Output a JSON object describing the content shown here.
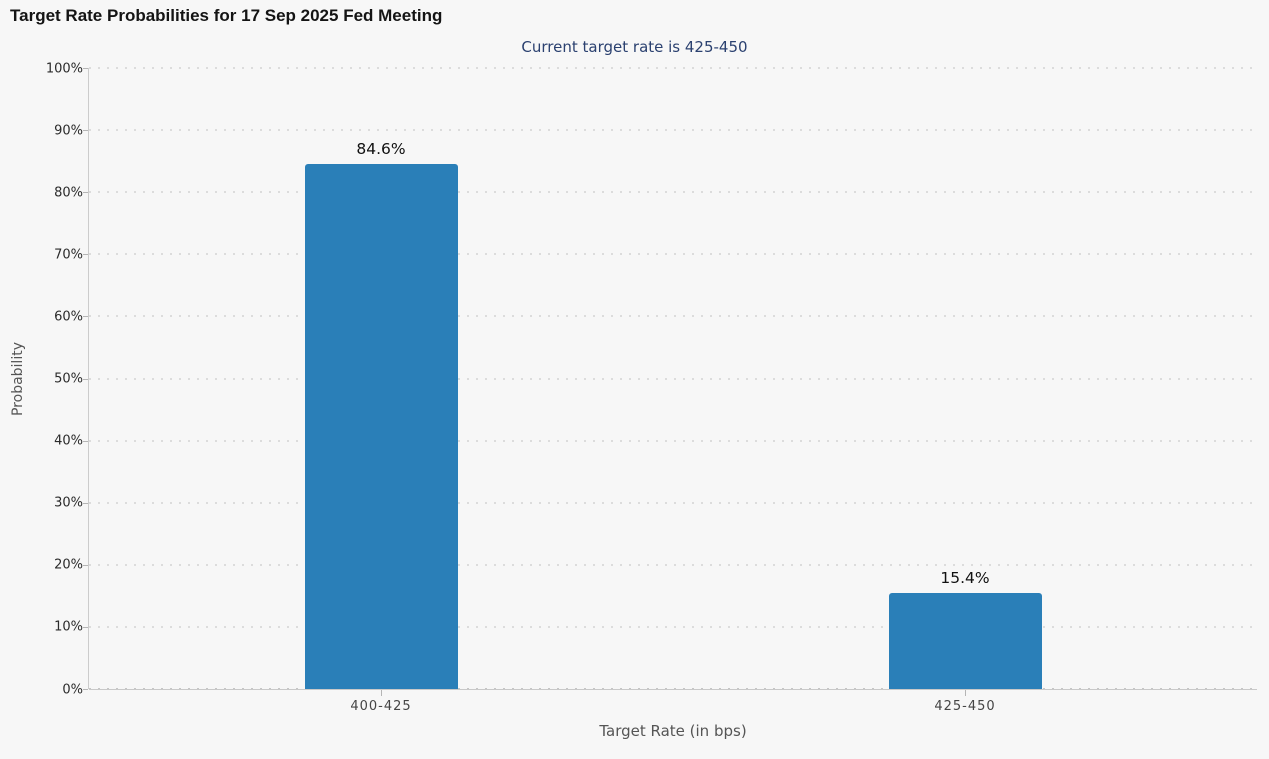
{
  "page": {
    "title": "Target Rate Probabilities for 17 Sep 2025 Fed Meeting",
    "subtitle": "Current target rate is 425-450"
  },
  "chart_data": {
    "type": "bar",
    "title": "Target Rate Probabilities for 17 Sep 2025 Fed Meeting",
    "subtitle": "Current target rate is 425-450",
    "categories": [
      "400-425",
      "425-450"
    ],
    "values": [
      84.6,
      15.4
    ],
    "data_labels": [
      "84.6%",
      "15.4%"
    ],
    "xlabel": "Target Rate (in bps)",
    "ylabel": "Probability",
    "ylim": [
      0,
      100
    ],
    "ytick_step": 10,
    "ytick_labels": [
      "0%",
      "10%",
      "20%",
      "30%",
      "40%",
      "50%",
      "60%",
      "70%",
      "80%",
      "90%",
      "100%"
    ],
    "grid": "dotted-horizontal",
    "legend": "none",
    "colors": {
      "bar": "#2a7fb8",
      "background": "#f7f7f7",
      "subtitle_text": "#2b4170",
      "axis_line": "#cccccc",
      "grid_dot": "#dcdcdc",
      "data_label_text": "#111111",
      "ytick_text": "#2b2b2b",
      "category_text": "#454545",
      "axis_title_text": "#555555"
    }
  }
}
